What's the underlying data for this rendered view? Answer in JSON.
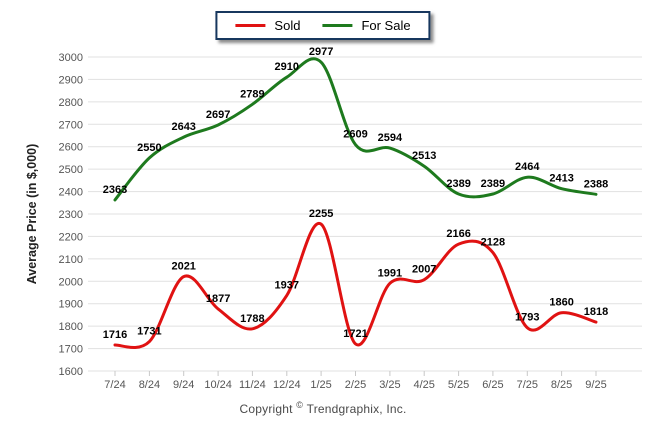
{
  "legend": {
    "items": [
      {
        "label": "Sold"
      },
      {
        "label": "For Sale"
      }
    ]
  },
  "footer": {
    "prefix": "Copyright",
    "symbol": "©",
    "company": "Trendgraphix, Inc."
  },
  "chart_data": {
    "type": "line",
    "x": [
      "7/24",
      "8/24",
      "9/24",
      "10/24",
      "11/24",
      "12/24",
      "1/25",
      "2/25",
      "3/25",
      "4/25",
      "5/25",
      "6/25",
      "7/25",
      "8/25",
      "9/25"
    ],
    "series": [
      {
        "name": "Sold",
        "color": "#e01212",
        "values": [
          1716,
          1731,
          2021,
          1877,
          1788,
          1937,
          2255,
          1721,
          1991,
          2007,
          2166,
          2128,
          1793,
          1860,
          1818
        ]
      },
      {
        "name": "For Sale",
        "color": "#1e7a1e",
        "values": [
          2363,
          2550,
          2643,
          2697,
          2789,
          2910,
          2977,
          2609,
          2594,
          2513,
          2389,
          2389,
          2464,
          2413,
          2388
        ]
      }
    ],
    "title": "",
    "xlabel": "",
    "ylabel": "Average Price (in $,000)",
    "ylim": [
      1600,
      3000
    ],
    "ytick_step": 100,
    "grid": true,
    "legend_position": "top-center",
    "line_style": "smooth",
    "colors": {
      "grid": "#e1e1e1",
      "axis_text": "#555555",
      "tick_mark": "#c8c8c8",
      "data_label": "#000000",
      "legend_border": "#17375e",
      "y_title": "#222222",
      "background": "#ffffff"
    }
  }
}
